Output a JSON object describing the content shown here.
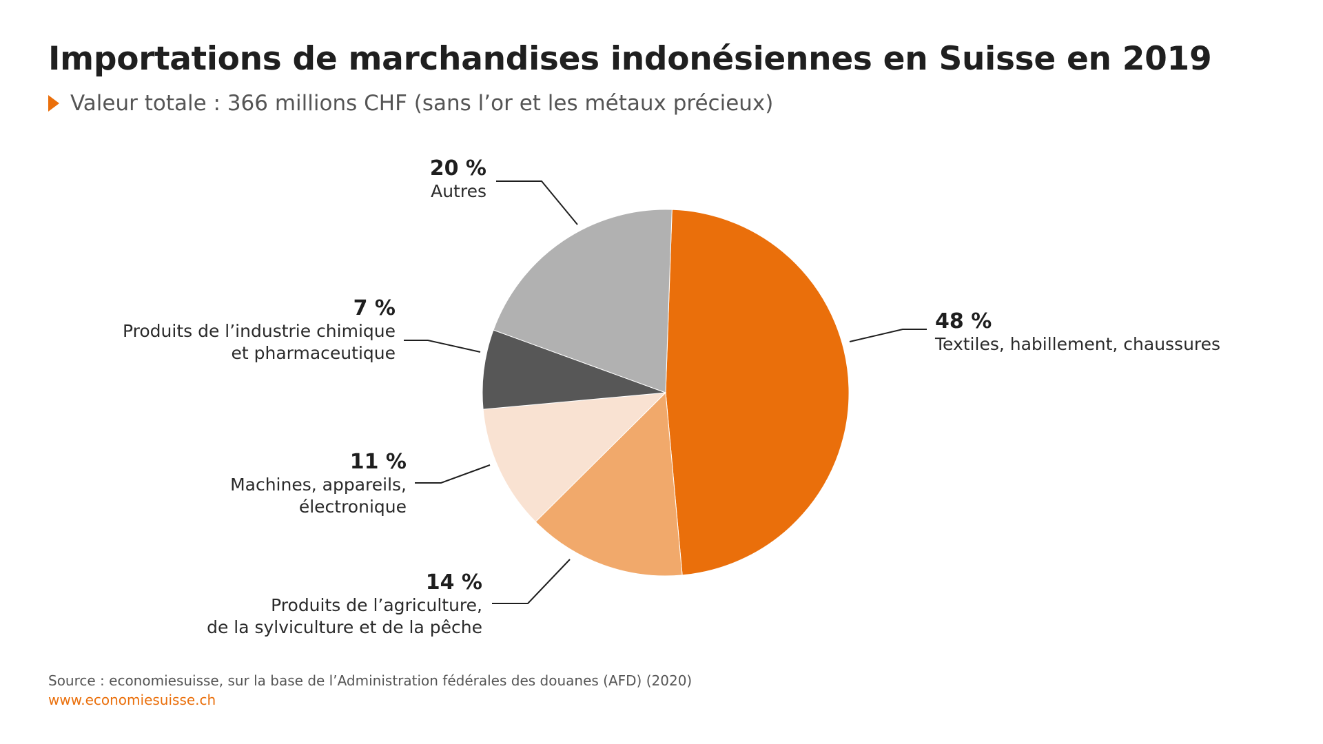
{
  "title": "Importations de marchandises indonésiennes en Suisse en 2019",
  "subtitle": "Valeur totale : 366 millions CHF (sans l’or et les métaux précieux)",
  "source": "Source : economiesuisse, sur la base de l’Administration fédérales des douanes (AFD) (2020)",
  "website": "www.economiesuisse.ch",
  "icons": {
    "subtitle_marker": "orange-triangle-right-icon"
  },
  "colors": {
    "accent": "#ea6f0b",
    "textiles": "#ea6f0b",
    "agriculture": "#f1a96b",
    "machines": "#f9e2d2",
    "chimique": "#575757",
    "autres": "#b1b1b1"
  },
  "chart_data": {
    "type": "pie",
    "start_angle_deg": 2,
    "direction": "clockwise",
    "slices": [
      {
        "key": "textiles",
        "value": 48,
        "pct_label": "48 %",
        "label_lines": [
          "Textiles, habillement, chaussures"
        ],
        "color": "#ea6f0b"
      },
      {
        "key": "agriculture",
        "value": 14,
        "pct_label": "14 %",
        "label_lines": [
          "Produits de l’agriculture,",
          "de la sylviculture et de la pêche"
        ],
        "color": "#f1a96b"
      },
      {
        "key": "machines",
        "value": 11,
        "pct_label": "11 %",
        "label_lines": [
          "Machines, appareils,",
          "électronique"
        ],
        "color": "#f9e2d2"
      },
      {
        "key": "chimique",
        "value": 7,
        "pct_label": "7 %",
        "label_lines": [
          "Produits de l’industrie chimique",
          "et pharmaceutique"
        ],
        "color": "#575757"
      },
      {
        "key": "autres",
        "value": 20,
        "pct_label": "20 %",
        "label_lines": [
          "Autres"
        ],
        "color": "#b1b1b1"
      }
    ]
  }
}
